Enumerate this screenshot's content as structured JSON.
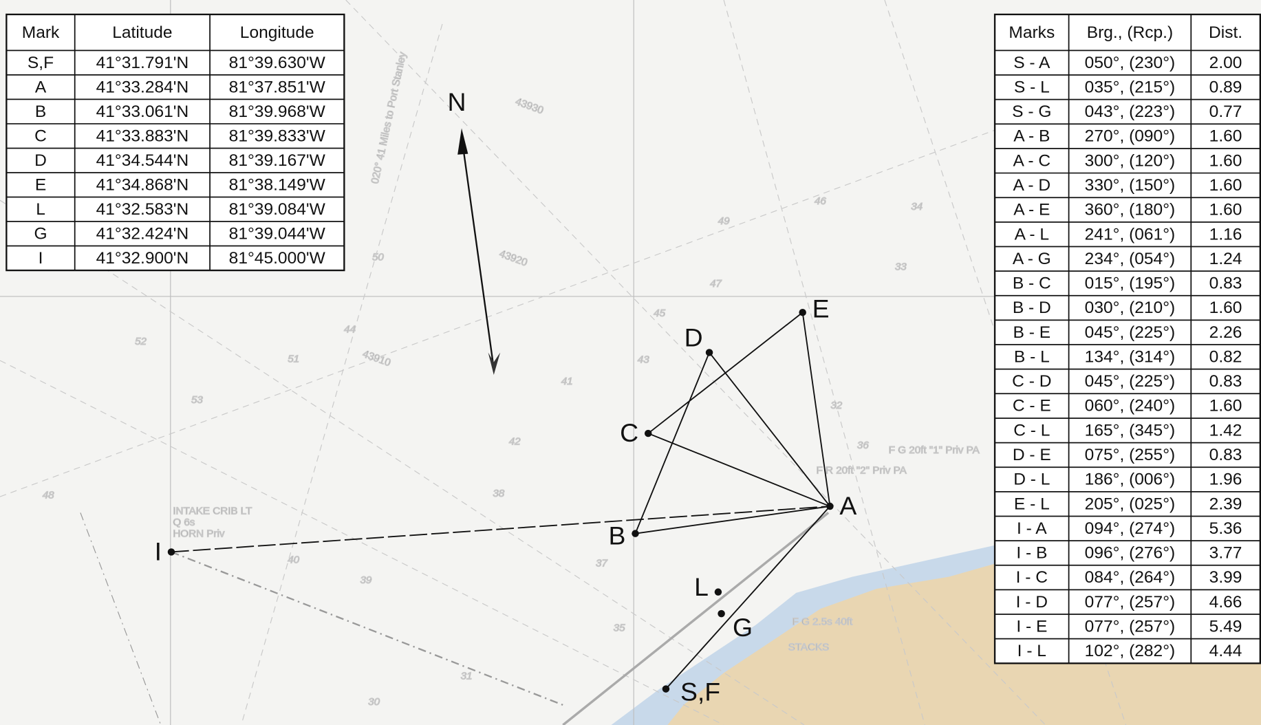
{
  "position_table": {
    "headers": [
      "Mark",
      "Latitude",
      "Longitude"
    ],
    "rows": [
      [
        "S,F",
        "41°31.791'N",
        "81°39.630'W"
      ],
      [
        "A",
        "41°33.284'N",
        "81°37.851'W"
      ],
      [
        "B",
        "41°33.061'N",
        "81°39.968'W"
      ],
      [
        "C",
        "41°33.883'N",
        "81°39.833'W"
      ],
      [
        "D",
        "41°34.544'N",
        "81°39.167'W"
      ],
      [
        "E",
        "41°34.868'N",
        "81°38.149'W"
      ],
      [
        "L",
        "41°32.583'N",
        "81°39.084'W"
      ],
      [
        "G",
        "41°32.424'N",
        "81°39.044'W"
      ],
      [
        "I",
        "41°32.900'N",
        "81°45.000'W"
      ]
    ]
  },
  "bearing_table": {
    "headers": [
      "Marks",
      "Brg., (Rcp.)",
      "Dist."
    ],
    "rows": [
      [
        "S - A",
        "050°, (230°)",
        "2.00"
      ],
      [
        "S - L",
        "035°, (215°)",
        "0.89"
      ],
      [
        "S - G",
        "043°, (223°)",
        "0.77"
      ],
      [
        "A - B",
        "270°, (090°)",
        "1.60"
      ],
      [
        "A - C",
        "300°, (120°)",
        "1.60"
      ],
      [
        "A - D",
        "330°, (150°)",
        "1.60"
      ],
      [
        "A - E",
        "360°, (180°)",
        "1.60"
      ],
      [
        "A - L",
        "241°, (061°)",
        "1.16"
      ],
      [
        "A - G",
        "234°, (054°)",
        "1.24"
      ],
      [
        "B - C",
        "015°, (195°)",
        "0.83"
      ],
      [
        "B - D",
        "030°, (210°)",
        "1.60"
      ],
      [
        "B - E",
        "045°, (225°)",
        "2.26"
      ],
      [
        "B - L",
        "134°, (314°)",
        "0.82"
      ],
      [
        "C - D",
        "045°, (225°)",
        "0.83"
      ],
      [
        "C - E",
        "060°, (240°)",
        "1.60"
      ],
      [
        "C - L",
        "165°, (345°)",
        "1.42"
      ],
      [
        "D - E",
        "075°, (255°)",
        "0.83"
      ],
      [
        "D - L",
        "186°, (006°)",
        "1.96"
      ],
      [
        "E - L",
        "205°, (025°)",
        "2.39"
      ],
      [
        "I - A",
        "094°, (274°)",
        "5.36"
      ],
      [
        "I - B",
        "096°, (276°)",
        "3.77"
      ],
      [
        "I - C",
        "084°, (264°)",
        "3.99"
      ],
      [
        "I - D",
        "077°, (257°)",
        "4.66"
      ],
      [
        "I - E",
        "077°, (257°)",
        "5.49"
      ],
      [
        "I - L",
        "102°, (282°)",
        "4.44"
      ]
    ]
  },
  "map": {
    "north_label": "N",
    "marks": [
      "S,F",
      "A",
      "B",
      "C",
      "D",
      "E",
      "L",
      "G",
      "I"
    ],
    "annotations": [
      "INTAKE CRIB LT",
      "Q 6s",
      "HORN Priv",
      "F G 20ft \"1\" Priv PA",
      "F R 20ft \"2\" Priv PA",
      "F G 2.5s 40ft",
      "STACKS",
      "020° 41 Miles to Port Stanley",
      "43930",
      "43920",
      "43910"
    ],
    "soundings": [
      "52",
      "51",
      "53",
      "48",
      "45",
      "47",
      "44",
      "43",
      "42",
      "40",
      "39",
      "38",
      "37",
      "36",
      "35",
      "34",
      "33",
      "32",
      "31",
      "30",
      "46",
      "49",
      "50",
      "41"
    ]
  }
}
